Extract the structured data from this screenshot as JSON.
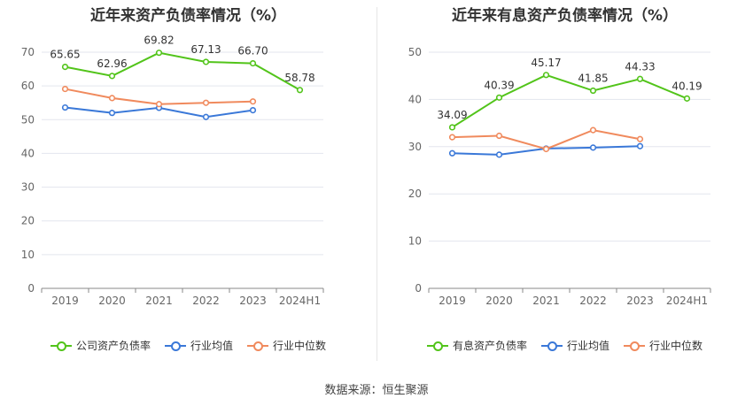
{
  "source_label": "数据来源：恒生聚源",
  "chart_data": [
    {
      "type": "line",
      "title": "近年来资产负债率情况（%）",
      "categories": [
        "2019",
        "2020",
        "2021",
        "2022",
        "2023",
        "2024H1"
      ],
      "ylim": [
        0,
        70
      ],
      "yticks": [
        0,
        10,
        20,
        30,
        40,
        50,
        60,
        70
      ],
      "grid": true,
      "legend_position": "bottom",
      "series": [
        {
          "name": "公司资产负债率",
          "color": "#52c41a",
          "values": [
            65.65,
            62.96,
            69.82,
            67.13,
            66.7,
            58.78
          ],
          "labels": [
            "65.65",
            "62.96",
            "69.82",
            "67.13",
            "66.70",
            "58.78"
          ]
        },
        {
          "name": "行业均值",
          "color": "#3a78d8",
          "values": [
            53.6,
            52.0,
            53.5,
            50.8,
            52.8,
            null
          ]
        },
        {
          "name": "行业中位数",
          "color": "#f08a5d",
          "values": [
            59.1,
            56.4,
            54.6,
            55.0,
            55.4,
            null
          ]
        }
      ]
    },
    {
      "type": "line",
      "title": "近年来有息资产负债率情况（%）",
      "categories": [
        "2019",
        "2020",
        "2021",
        "2022",
        "2023",
        "2024H1"
      ],
      "ylim": [
        0,
        50
      ],
      "yticks": [
        0,
        10,
        20,
        30,
        40,
        50
      ],
      "grid": true,
      "legend_position": "bottom",
      "series": [
        {
          "name": "有息资产负债率",
          "color": "#52c41a",
          "values": [
            34.09,
            40.39,
            45.17,
            41.85,
            44.33,
            40.19
          ],
          "labels": [
            "34.09",
            "40.39",
            "45.17",
            "41.85",
            "44.33",
            "40.19"
          ]
        },
        {
          "name": "行业均值",
          "color": "#3a78d8",
          "values": [
            28.6,
            28.3,
            29.6,
            29.8,
            30.1,
            null
          ]
        },
        {
          "name": "行业中位数",
          "color": "#f08a5d",
          "values": [
            32.0,
            32.3,
            29.5,
            33.5,
            31.6,
            null
          ]
        }
      ]
    }
  ]
}
